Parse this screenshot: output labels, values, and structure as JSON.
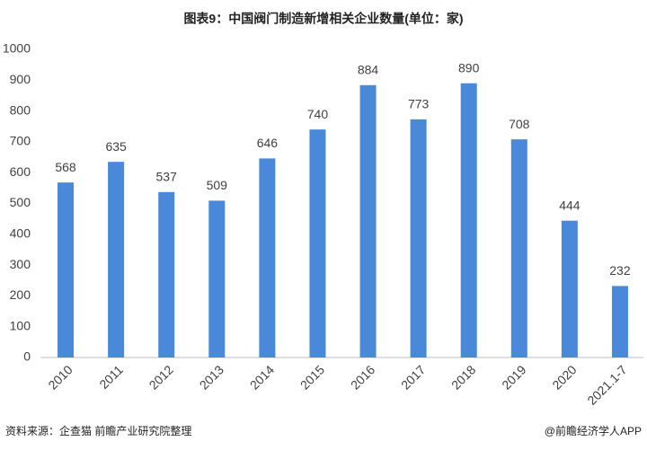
{
  "chart_data": {
    "type": "bar",
    "title": "图表9：中国阀门制造新增相关企业数量(单位：家)",
    "categories": [
      "2010",
      "2011",
      "2012",
      "2013",
      "2014",
      "2015",
      "2016",
      "2017",
      "2018",
      "2019",
      "2020",
      "2021.1-7"
    ],
    "values": [
      568,
      635,
      537,
      509,
      646,
      740,
      884,
      773,
      890,
      708,
      444,
      232
    ],
    "color": "#4a88da",
    "ylim": [
      0,
      1000
    ],
    "yticks": [
      0,
      100,
      200,
      300,
      400,
      500,
      600,
      700,
      800,
      900,
      1000
    ],
    "grid": false,
    "source": "资料来源：企查猫 前瞻产业研究院整理",
    "credit": "@前瞻经济学人APP"
  }
}
